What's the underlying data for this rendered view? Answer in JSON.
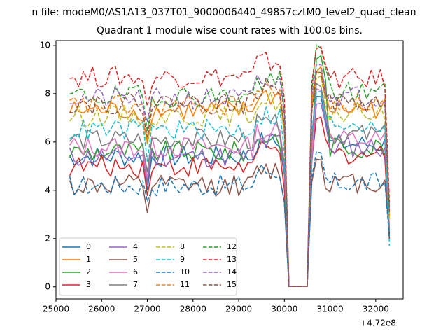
{
  "figure": {
    "suptitle": "n file: modeM0/AS1A13_037T01_9000006440_49857cztM0_level2_quad_clean",
    "x_offset_label": "+4.72e8"
  },
  "chart_data": {
    "type": "line",
    "title": "Quadrant 1 module wise count rates with 100.0s bins.",
    "xlabel": "",
    "ylabel": "",
    "xlim": [
      25000,
      32600
    ],
    "ylim": [
      -0.5,
      10.2
    ],
    "x_ticks": [
      25000,
      26000,
      27000,
      28000,
      29000,
      30000,
      31000,
      32000
    ],
    "y_ticks": [
      0,
      2,
      4,
      6,
      8,
      10
    ],
    "grid": false,
    "legend": {
      "placement": "lower-left",
      "columns": 4
    },
    "x": [
      25300,
      25400,
      25500,
      25600,
      25700,
      25800,
      25900,
      26000,
      26100,
      26200,
      26300,
      26400,
      26500,
      26600,
      26700,
      26800,
      26900,
      27000,
      27100,
      27200,
      27300,
      27400,
      27500,
      27600,
      27700,
      27800,
      27900,
      28000,
      28100,
      28200,
      28300,
      28400,
      28500,
      28600,
      28700,
      28800,
      28900,
      29000,
      29100,
      29200,
      29300,
      29400,
      29500,
      29600,
      29700,
      29800,
      29900,
      30000,
      30100,
      30200,
      30300,
      30400,
      30500,
      30600,
      30700,
      30800,
      30900,
      31000,
      31100,
      31200,
      31300,
      31400,
      31500,
      31600,
      31700,
      31800,
      31900,
      32000,
      32100,
      32200,
      32300
    ],
    "series": [
      {
        "name": "0",
        "color": "#1f77b4",
        "dash": "solid",
        "base": 5.4,
        "peak": 8.0,
        "post": 5.9,
        "end": 2.2,
        "dip": 4.0
      },
      {
        "name": "1",
        "color": "#ff7f0e",
        "dash": "solid",
        "base": 7.3,
        "peak": 9.0,
        "post": 7.4,
        "end": 2.9,
        "dip": 6.0
      },
      {
        "name": "2",
        "color": "#2ca02c",
        "dash": "solid",
        "base": 5.6,
        "peak": 9.5,
        "post": 5.8,
        "end": 2.0,
        "dip": 4.3
      },
      {
        "name": "3",
        "color": "#d62728",
        "dash": "solid",
        "base": 5.0,
        "peak": 7.0,
        "post": 5.5,
        "end": 2.0,
        "dip": 3.9
      },
      {
        "name": "4",
        "color": "#9467bd",
        "dash": "solid",
        "base": 5.4,
        "peak": 7.6,
        "post": 5.8,
        "end": 2.2,
        "dip": 4.3
      },
      {
        "name": "5",
        "color": "#8c564b",
        "dash": "solid",
        "base": 4.2,
        "peak": 5.3,
        "post": 4.3,
        "end": 2.2,
        "dip": 3.1
      },
      {
        "name": "6",
        "color": "#e377c2",
        "dash": "solid",
        "base": 5.8,
        "peak": 8.2,
        "post": 6.1,
        "end": 2.4,
        "dip": 4.5
      },
      {
        "name": "7",
        "color": "#7f7f7f",
        "dash": "solid",
        "base": 6.1,
        "peak": 8.4,
        "post": 6.3,
        "end": 2.3,
        "dip": 4.7
      },
      {
        "name": "8",
        "color": "#bcbd22",
        "dash": "dashed",
        "base": 7.1,
        "peak": 8.6,
        "post": 7.2,
        "end": 2.8,
        "dip": 5.8
      },
      {
        "name": "9",
        "color": "#17becf",
        "dash": "dashed",
        "base": 6.5,
        "peak": 8.0,
        "post": 6.8,
        "end": 1.7,
        "dip": 5.3
      },
      {
        "name": "10",
        "color": "#1f77b4",
        "dash": "dashed",
        "base": 4.2,
        "peak": 5.5,
        "post": 4.3,
        "end": 2.0,
        "dip": 3.6
      },
      {
        "name": "11",
        "color": "#ff7f0e",
        "dash": "dashed",
        "base": 7.5,
        "peak": 8.8,
        "post": 7.6,
        "end": 3.0,
        "dip": 6.0
      },
      {
        "name": "12",
        "color": "#2ca02c",
        "dash": "dashed",
        "base": 7.9,
        "peak": 9.9,
        "post": 8.1,
        "end": 3.3,
        "dip": 6.4
      },
      {
        "name": "13",
        "color": "#d62728",
        "dash": "dashed",
        "base": 8.7,
        "peak": 10.0,
        "post": 8.6,
        "end": 3.5,
        "dip": 7.4
      },
      {
        "name": "14",
        "color": "#9467bd",
        "dash": "dashed",
        "base": 7.8,
        "peak": 9.3,
        "post": 7.9,
        "end": 3.2,
        "dip": 6.7
      },
      {
        "name": "15",
        "color": "#8c564b",
        "dash": "dashed",
        "base": 7.6,
        "peak": 9.0,
        "post": 7.6,
        "end": 3.1,
        "dip": 6.3
      }
    ]
  }
}
